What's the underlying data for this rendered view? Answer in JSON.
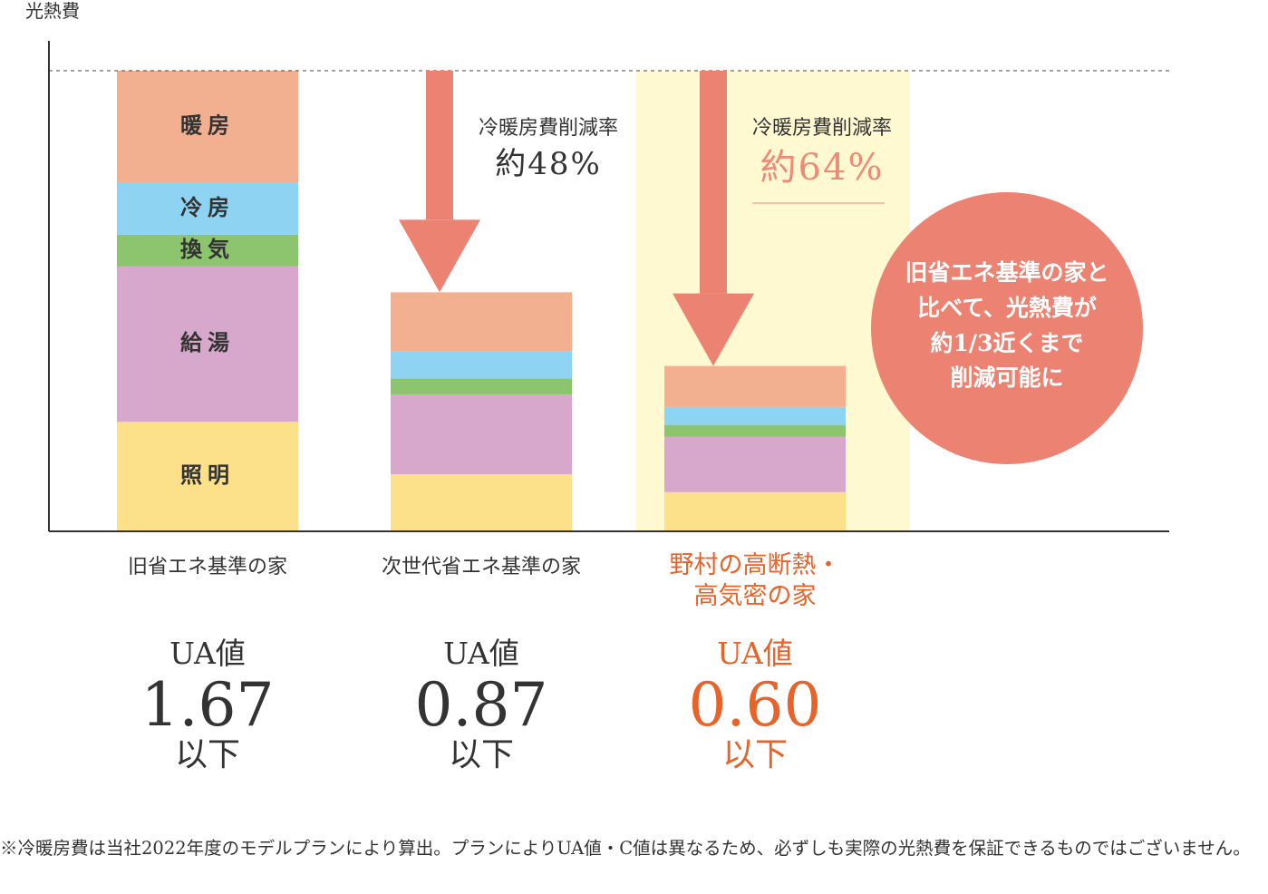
{
  "chart_data": {
    "type": "bar",
    "stacked": true,
    "y_label": "光熱費",
    "categories": [
      "旧省エネ基準の家",
      "次世代省エネ基準の家",
      "野村の高断熱・\n高気密の家"
    ],
    "ylim": [
      0,
      100
    ],
    "series": [
      {
        "name": "照明",
        "color": "#fde08a",
        "values": [
          23.8,
          12.4,
          8.5
        ]
      },
      {
        "name": "給湯",
        "color": "#d8a8cc",
        "values": [
          33.7,
          17.3,
          12.0
        ]
      },
      {
        "name": "換気",
        "color": "#8dc46e",
        "values": [
          6.9,
          3.5,
          2.6
        ]
      },
      {
        "name": "冷房",
        "color": "#8fd3f2",
        "values": [
          11.2,
          5.9,
          3.9
        ]
      },
      {
        "name": "暖房",
        "color": "#f3b090",
        "values": [
          24.4,
          12.8,
          8.9
        ]
      }
    ],
    "highlight_category": 2,
    "highlight_color": "#fff9d2",
    "highlight_text_color": "#e8632a",
    "arrow_color": "#ec8272",
    "annotations": [
      null,
      {
        "title": "冷暖房費削減率",
        "text": "約48%"
      },
      {
        "title": "冷暖房費削減率",
        "text": "約64%"
      }
    ],
    "callout": "旧省エネ基準の家と\n比べて、光熱費が\n約1/3近くまで\n削減可能に",
    "ua": [
      {
        "label": "UA値",
        "value": "1.67",
        "suffix": "以下"
      },
      {
        "label": "UA値",
        "value": "0.87",
        "suffix": "以下"
      },
      {
        "label": "UA値",
        "value": "0.60",
        "suffix": "以下"
      }
    ],
    "footnote": "※冷暖房費は当社2022年度のモデルプランにより算出。プランによりUA値・C値は異なるため、必ずしも実際の光熱費を保証できるものではございません。"
  }
}
